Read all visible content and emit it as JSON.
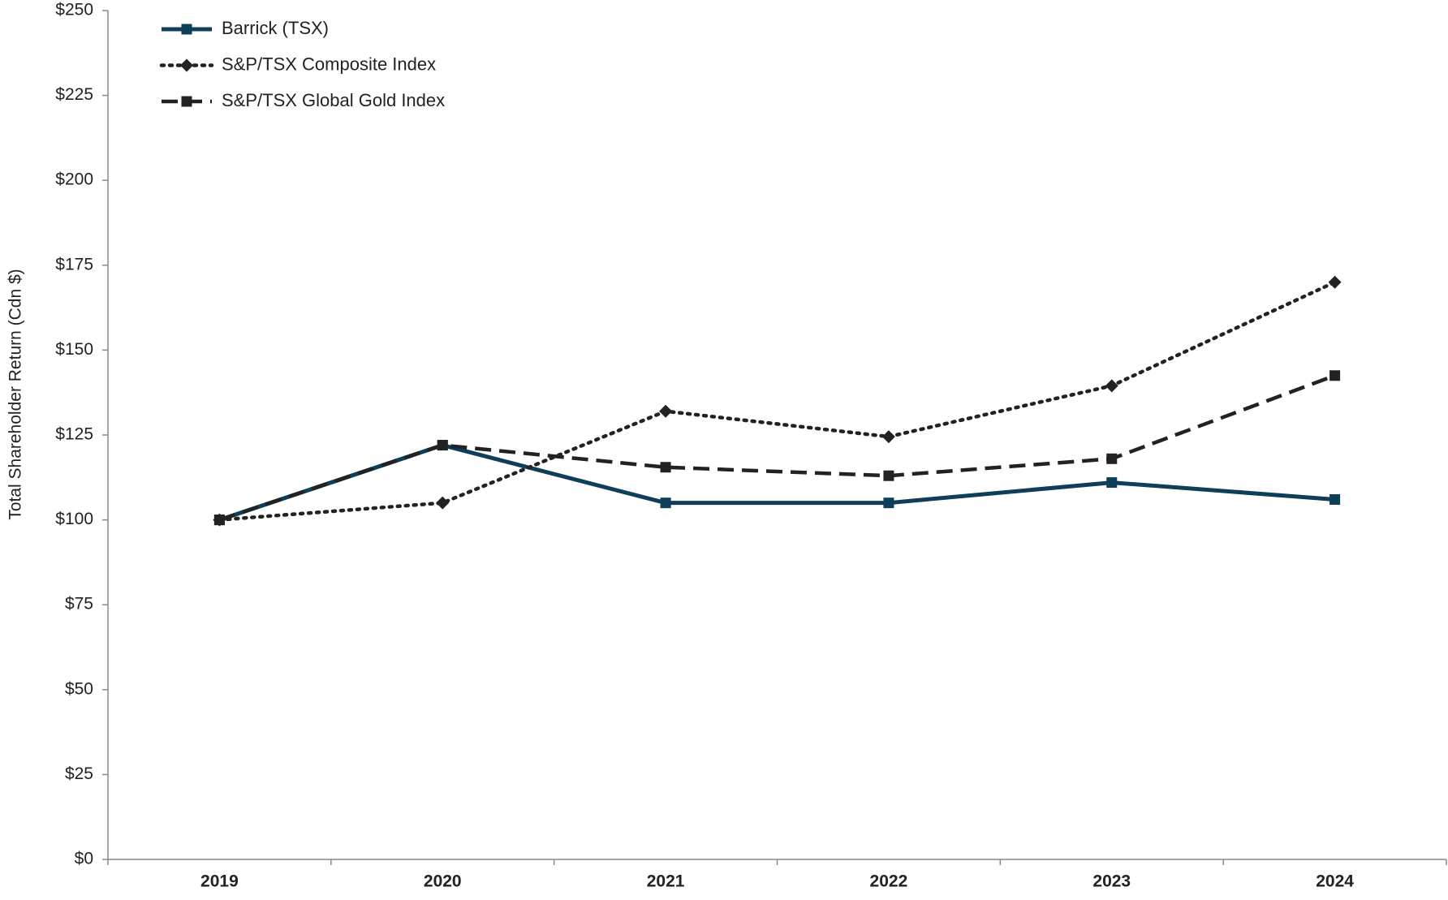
{
  "chart_data": {
    "type": "line",
    "y_label": "Total Shareholder Return (Cdn $)",
    "categories": [
      "2019",
      "2020",
      "2021",
      "2022",
      "2023",
      "2024"
    ],
    "series": [
      {
        "name": "Barrick (TSX)",
        "color": "#0d3f5a",
        "line_style": "solid",
        "marker": "square",
        "values": [
          100,
          122,
          105,
          105,
          111,
          106
        ]
      },
      {
        "name": "S&P/TSX Composite Index",
        "color": "#222222",
        "line_style": "dotted",
        "marker": "diamond",
        "values": [
          100,
          105,
          132,
          124.5,
          139.5,
          170
        ]
      },
      {
        "name": "S&P/TSX Global Gold Index",
        "color": "#222222",
        "line_style": "dashed",
        "marker": "square",
        "values": [
          100,
          122,
          115.5,
          113,
          118,
          142.5
        ]
      }
    ],
    "ylim": [
      0,
      250
    ],
    "yticks": [
      {
        "value": 0,
        "label": "$0"
      },
      {
        "value": 25,
        "label": "$25"
      },
      {
        "value": 50,
        "label": "$50"
      },
      {
        "value": 75,
        "label": "$75"
      },
      {
        "value": 100,
        "label": "$100"
      },
      {
        "value": 125,
        "label": "$125"
      },
      {
        "value": 150,
        "label": "$150"
      },
      {
        "value": 175,
        "label": "$175"
      },
      {
        "value": 200,
        "label": "$200"
      },
      {
        "value": 225,
        "label": "$225"
      },
      {
        "value": 250,
        "label": "$250"
      }
    ],
    "grid": false,
    "legend": "top-left"
  }
}
